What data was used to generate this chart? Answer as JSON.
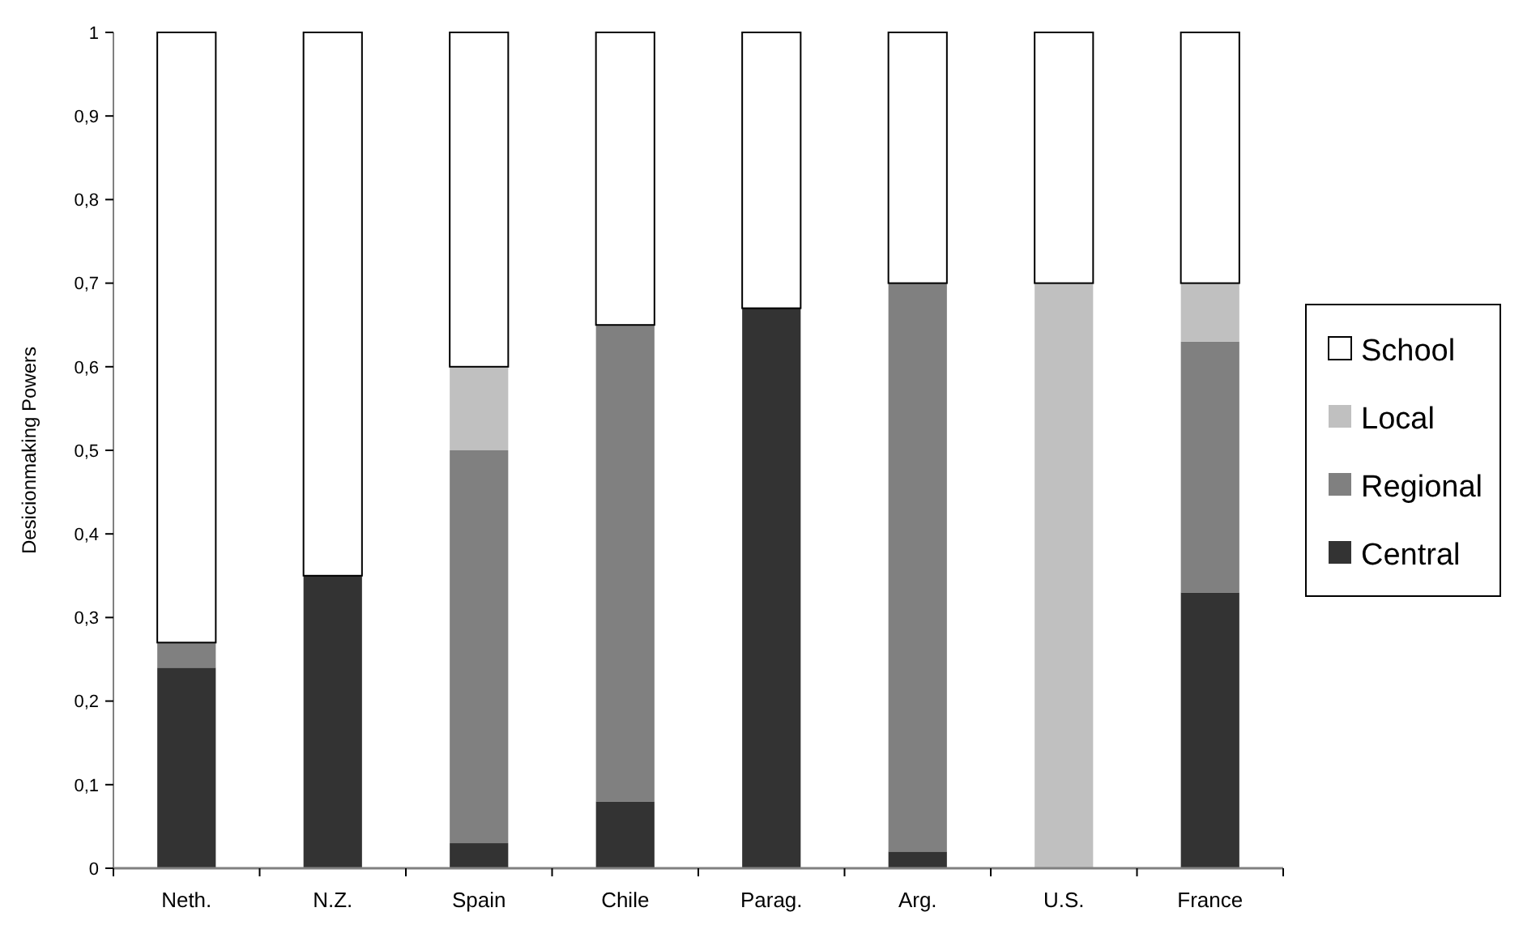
{
  "chart_data": {
    "type": "bar",
    "stacked": true,
    "ylabel": "Desicionmaking Powers",
    "categories": [
      "Neth.",
      "N.Z.",
      "Spain",
      "Chile",
      "Parag.",
      "Arg.",
      "U.S.",
      "France"
    ],
    "series": [
      {
        "name": "Central",
        "color": "#333333",
        "values": [
          0.24,
          0.35,
          0.03,
          0.08,
          0.67,
          0.02,
          0,
          0.33
        ]
      },
      {
        "name": "Regional",
        "color": "#808080",
        "values": [
          0.03,
          0,
          0.47,
          0.57,
          0,
          0.68,
          0,
          0.3
        ]
      },
      {
        "name": "Local",
        "color": "#c0c0c0",
        "values": [
          0,
          0,
          0.1,
          0,
          0,
          0,
          0.7,
          0.07
        ]
      },
      {
        "name": "School",
        "color": "#ffffff",
        "values": [
          0.73,
          0.65,
          0.4,
          0.35,
          0.33,
          0.3,
          0.3,
          0.3
        ]
      }
    ],
    "ylim": [
      0,
      1
    ],
    "yticks": [
      0,
      {
        "value": 0.1,
        "label": "0,1"
      },
      {
        "value": 0.2,
        "label": "0,2"
      },
      {
        "value": 0.3,
        "label": "0,3"
      },
      {
        "value": 0.4,
        "label": "0,4"
      },
      {
        "value": 0.5,
        "label": "0,5"
      },
      {
        "value": 0.6,
        "label": "0,6"
      },
      {
        "value": 0.7,
        "label": "0,7"
      },
      {
        "value": 0.8,
        "label": "0,8"
      },
      {
        "value": 0.9,
        "label": "0,9"
      },
      1
    ],
    "grid": false,
    "legend": "right"
  }
}
